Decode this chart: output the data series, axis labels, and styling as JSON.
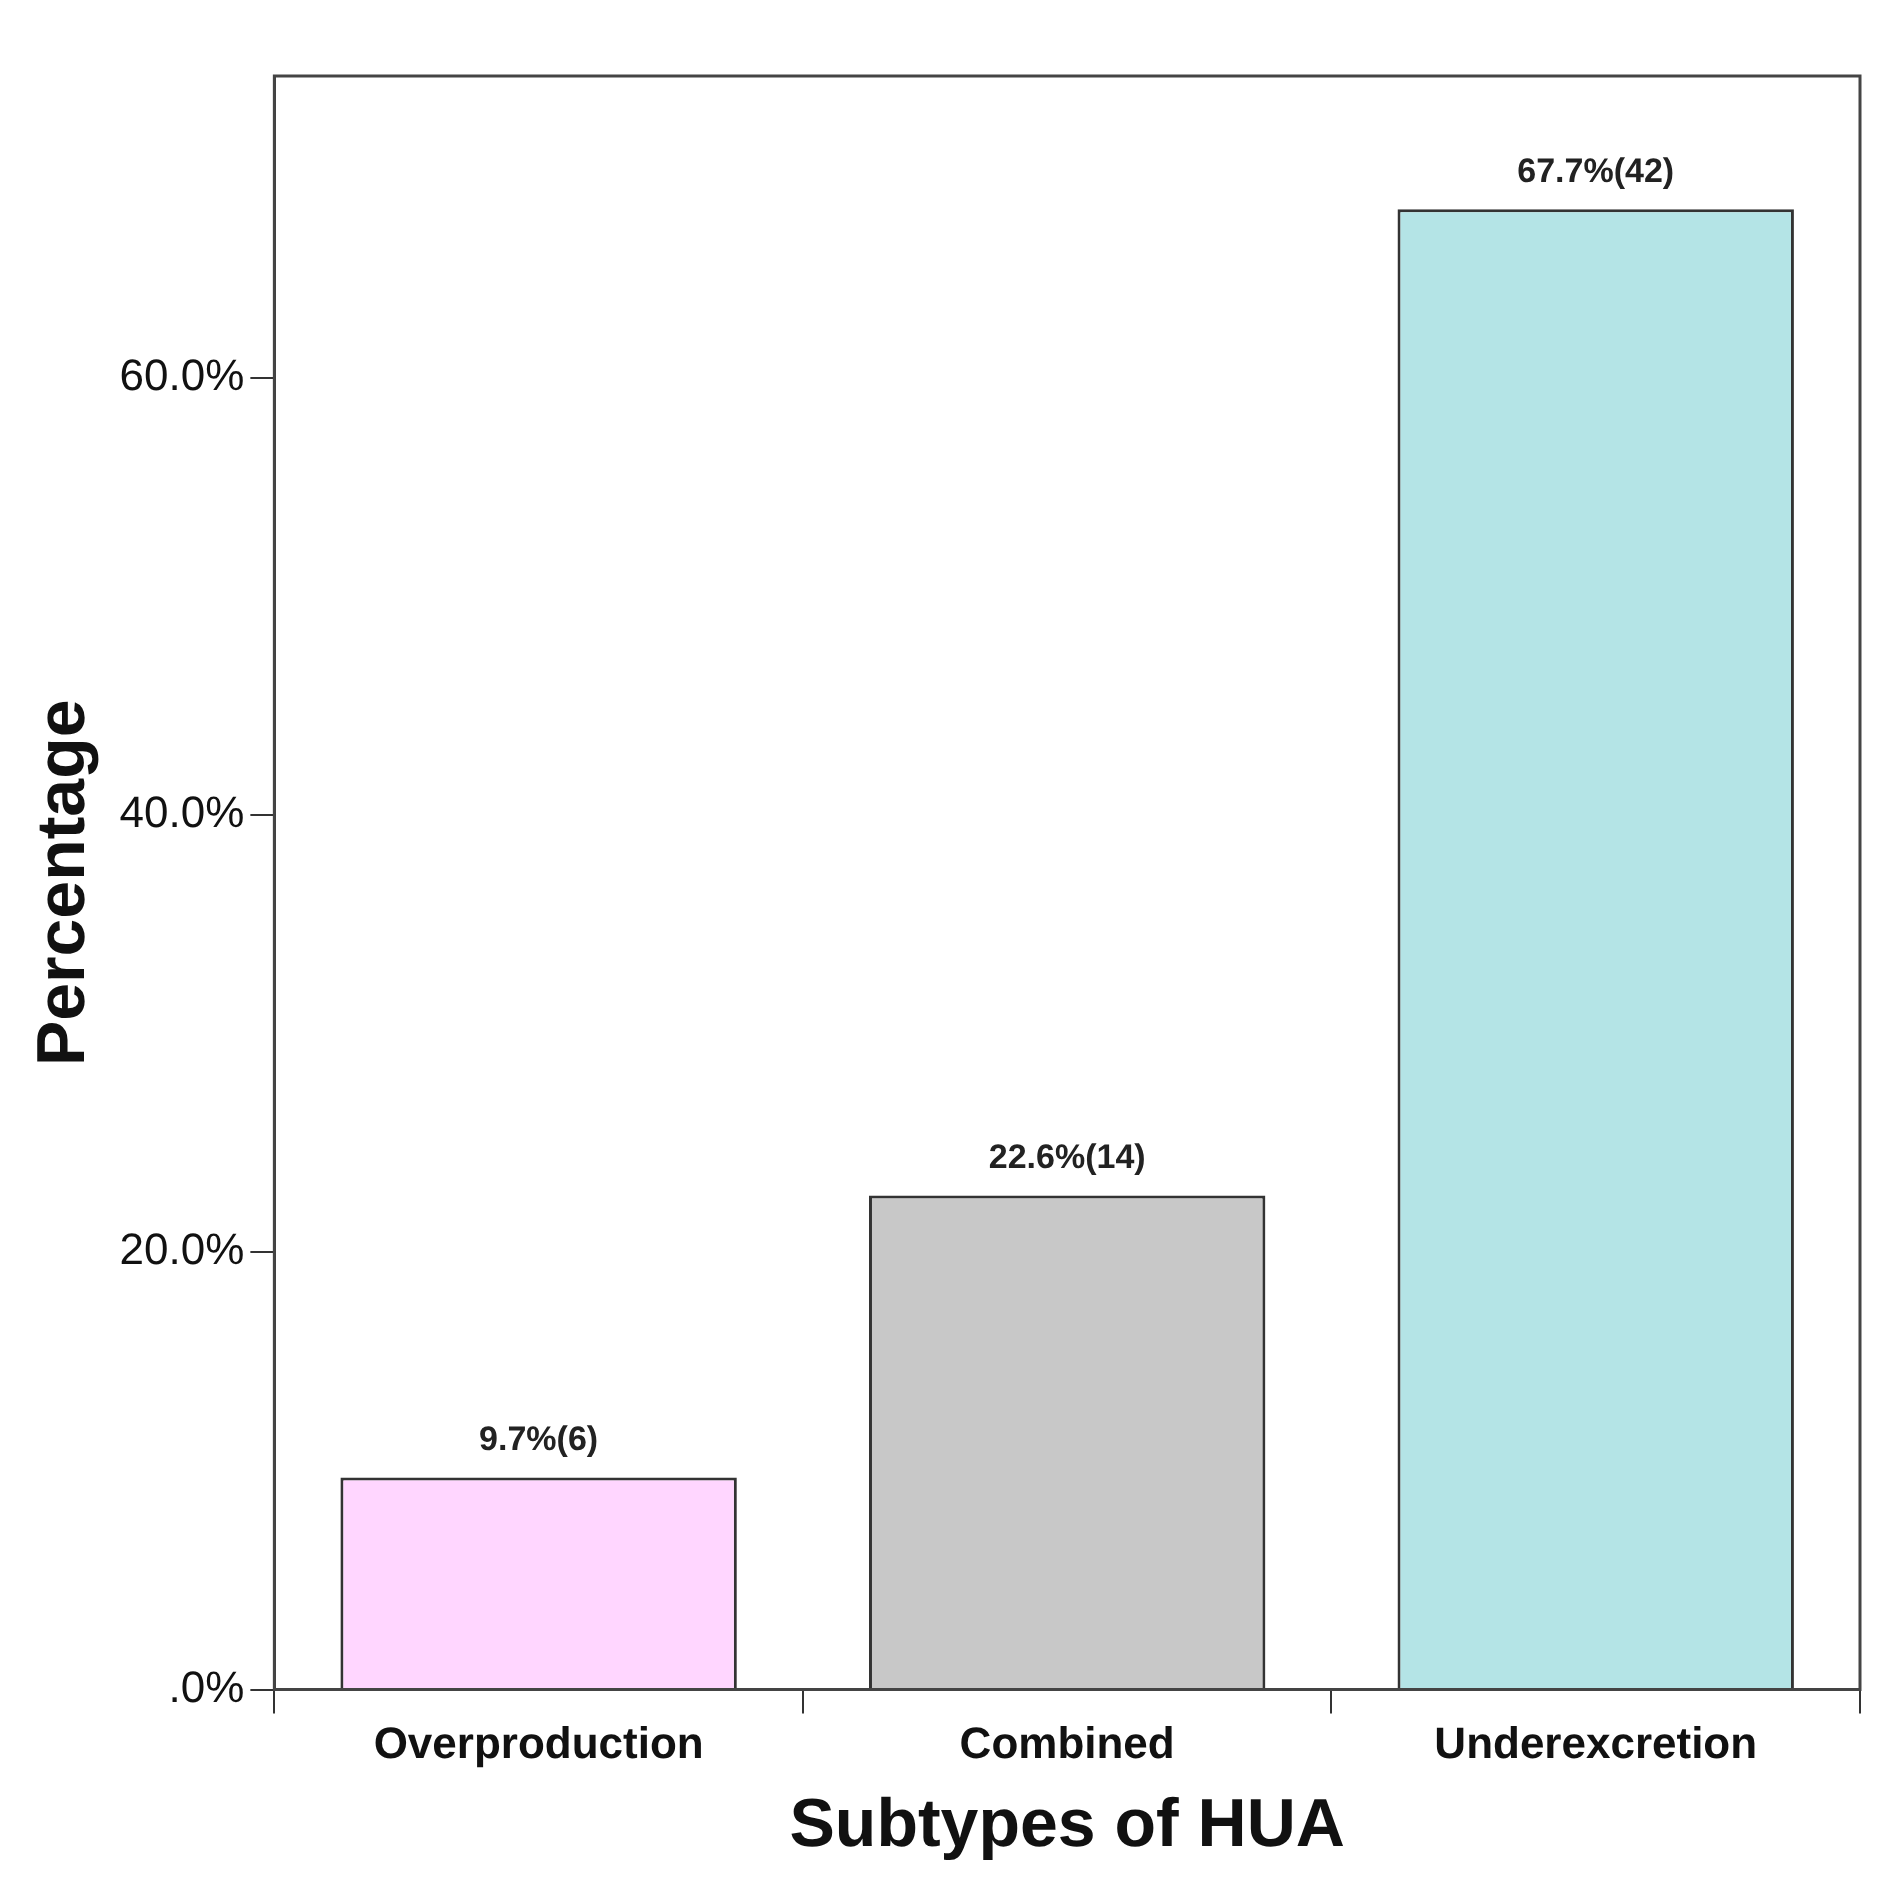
{
  "chart_data": {
    "type": "bar",
    "xlabel": "Subtypes of HUA",
    "ylabel": "Percentage",
    "categories": [
      "Overproduction",
      "Combined",
      "Underexcretion"
    ],
    "values": [
      9.7,
      22.6,
      67.7
    ],
    "colors": [
      "#ffd6ff",
      "#c8c8c8",
      "#b4e4e6"
    ],
    "value_labels": [
      "9.7%(6)",
      "22.6%(14)",
      "67.7%(42)"
    ],
    "ylim": [
      0,
      73.8
    ],
    "yticks": [
      {
        "value": 0,
        "label": ".0%"
      },
      {
        "value": 20,
        "label": "20.0%"
      },
      {
        "value": 40,
        "label": "40.0%"
      },
      {
        "value": 60,
        "label": "60.0%"
      }
    ],
    "grid": false,
    "legend": false
  }
}
